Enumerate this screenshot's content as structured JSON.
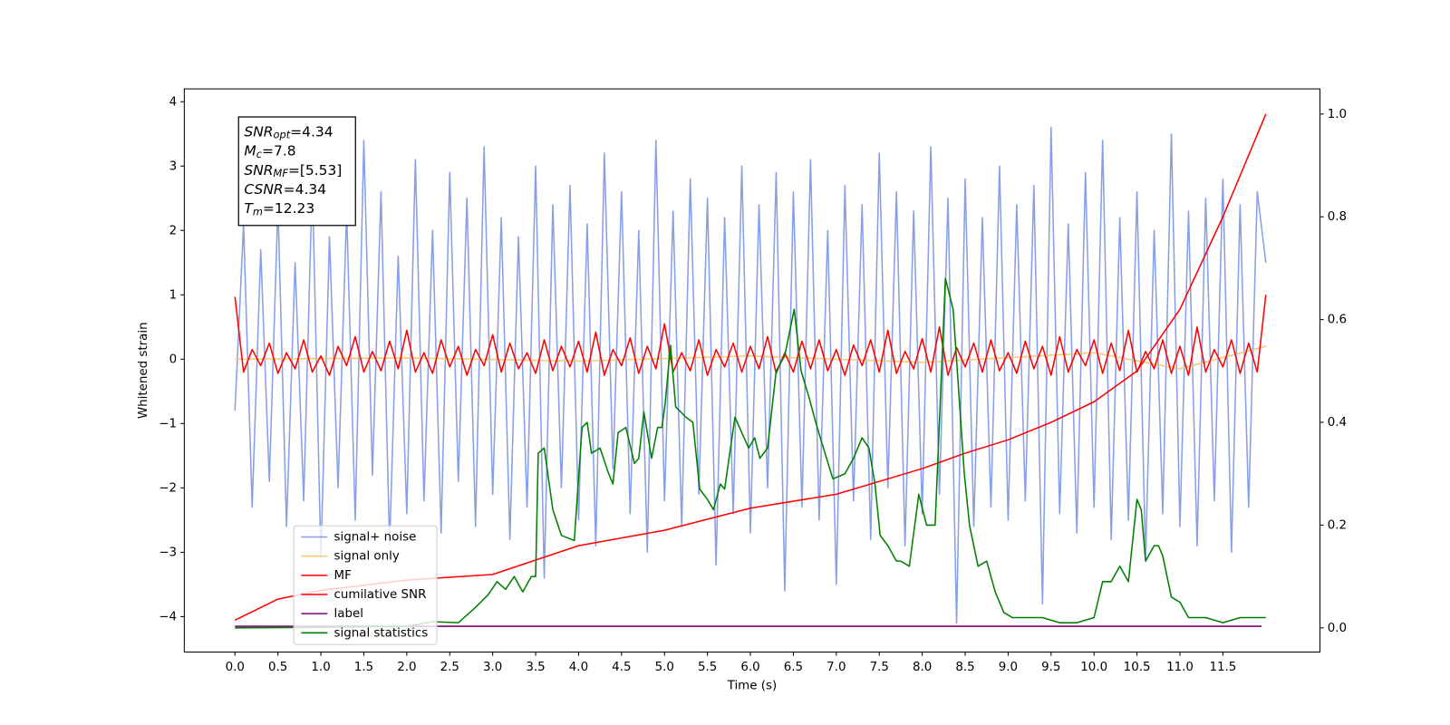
{
  "chart_data": {
    "type": "line",
    "xlabel": "Time (s)",
    "ylabel": "Whitened strain",
    "xlim": [
      -0.59,
      12.63
    ],
    "ylim": [
      -4.55,
      4.2
    ],
    "y2lim": [
      -0.047,
      1.049
    ],
    "xticks": [
      {
        "value": 0,
        "label": "0.0"
      },
      {
        "value": 0.5,
        "label": "0.5"
      },
      {
        "value": 1,
        "label": "1.0"
      },
      {
        "value": 1.5,
        "label": "1.5"
      },
      {
        "value": 2,
        "label": "2.0"
      },
      {
        "value": 2.5,
        "label": "2.5"
      },
      {
        "value": 3,
        "label": "3.0"
      },
      {
        "value": 3.5,
        "label": "3.5"
      },
      {
        "value": 4,
        "label": "4.0"
      },
      {
        "value": 4.5,
        "label": "4.5"
      },
      {
        "value": 5,
        "label": "5.0"
      },
      {
        "value": 5.5,
        "label": "5.5"
      },
      {
        "value": 6,
        "label": "6.0"
      },
      {
        "value": 6.5,
        "label": "6.5"
      },
      {
        "value": 7,
        "label": "7.0"
      },
      {
        "value": 7.5,
        "label": "7.5"
      },
      {
        "value": 8,
        "label": "8.0"
      },
      {
        "value": 8.5,
        "label": "8.5"
      },
      {
        "value": 9,
        "label": "9.0"
      },
      {
        "value": 9.5,
        "label": "9.5"
      },
      {
        "value": 10,
        "label": "10.0"
      },
      {
        "value": 10.5,
        "label": "10.5"
      },
      {
        "value": 11,
        "label": "11.0"
      },
      {
        "value": 11.5,
        "label": "11.5"
      }
    ],
    "yticks": [
      {
        "value": -4,
        "label": "−4"
      },
      {
        "value": -3,
        "label": "−3"
      },
      {
        "value": -2,
        "label": "−2"
      },
      {
        "value": -1,
        "label": "−1"
      },
      0,
      1,
      2,
      3,
      4
    ],
    "y2ticks": [
      {
        "value": 0,
        "label": "0.0"
      },
      {
        "value": 0.2,
        "label": "0.2"
      },
      {
        "value": 0.4,
        "label": "0.4"
      },
      {
        "value": 0.6,
        "label": "0.6"
      },
      {
        "value": 0.8,
        "label": "0.8"
      },
      {
        "value": 1,
        "label": "1.0"
      }
    ],
    "legend": "lower left",
    "annotations": [
      {
        "main": "SNR",
        "sub": "opt",
        "rest": "=4.34"
      },
      {
        "main": "M",
        "sub": "c",
        "rest": "=7.8"
      },
      {
        "main": "SNR",
        "sub": "MF",
        "rest": "=[5.53]"
      },
      {
        "main": "CSNR",
        "rest": "=4.34"
      },
      {
        "main": "T",
        "sub": "m",
        "rest": "=12.23"
      }
    ],
    "x": [
      0,
      0.1,
      0.2,
      0.3,
      0.4,
      0.5,
      0.6,
      0.7,
      0.8,
      0.9,
      1,
      1.1,
      1.2,
      1.3,
      1.4,
      1.5,
      1.6,
      1.7,
      1.8,
      1.9,
      2,
      2.1,
      2.2,
      2.3,
      2.4,
      2.5,
      2.6,
      2.7,
      2.8,
      2.9,
      3,
      3.1,
      3.2,
      3.3,
      3.4,
      3.5,
      3.6,
      3.7,
      3.8,
      3.9,
      4,
      4.1,
      4.2,
      4.3,
      4.4,
      4.5,
      4.6,
      4.7,
      4.8,
      4.9,
      5,
      5.1,
      5.2,
      5.3,
      5.4,
      5.5,
      5.6,
      5.7,
      5.8,
      5.9,
      6,
      6.1,
      6.2,
      6.3,
      6.4,
      6.5,
      6.6,
      6.7,
      6.8,
      6.9,
      7,
      7.1,
      7.2,
      7.3,
      7.4,
      7.5,
      7.6,
      7.7,
      7.8,
      7.9,
      8,
      8.1,
      8.2,
      8.3,
      8.4,
      8.5,
      8.6,
      8.7,
      8.8,
      8.9,
      9,
      9.1,
      9.2,
      9.3,
      9.4,
      9.5,
      9.6,
      9.7,
      9.8,
      9.9,
      10,
      10.1,
      10.2,
      10.3,
      10.4,
      10.5,
      10.6,
      10.7,
      10.8,
      10.9,
      11,
      11.1,
      11.2,
      11.3,
      11.4,
      11.5,
      11.6,
      11.7,
      11.8,
      11.9,
      12
    ],
    "series": [
      {
        "name": "signal+ noise",
        "color": "#7b93e6",
        "values": [
          -0.8,
          2.1,
          -2.3,
          1.7,
          -1.9,
          2.4,
          -2.6,
          1.5,
          -2.2,
          2.8,
          -3.1,
          1.9,
          -2.0,
          2.3,
          -2.5,
          3.4,
          -1.8,
          2.6,
          -2.9,
          1.6,
          -2.4,
          3.1,
          -2.2,
          2.0,
          -2.7,
          2.9,
          -1.9,
          2.5,
          -2.6,
          3.3,
          -2.1,
          2.2,
          -2.8,
          1.9,
          -2.3,
          3.0,
          -3.4,
          2.4,
          -2.0,
          2.7,
          -2.5,
          2.1,
          -2.9,
          3.2,
          -1.7,
          2.6,
          -2.4,
          2.0,
          -3.0,
          3.4,
          -2.2,
          2.3,
          -2.6,
          2.8,
          -2.1,
          2.5,
          -3.2,
          2.2,
          -2.4,
          3.0,
          -2.7,
          2.4,
          -2.0,
          2.9,
          -3.6,
          2.6,
          -2.3,
          3.1,
          -2.5,
          2.0,
          -3.5,
          2.7,
          -2.2,
          2.4,
          -2.8,
          3.2,
          -2.0,
          2.6,
          -2.9,
          2.3,
          -2.4,
          3.3,
          -2.1,
          2.5,
          -4.1,
          2.8,
          -2.6,
          2.2,
          -2.3,
          3.0,
          -2.5,
          2.4,
          -2.2,
          2.7,
          -3.8,
          3.6,
          -2.4,
          2.1,
          -2.7,
          2.9,
          -2.3,
          3.4,
          -2.8,
          2.2,
          -2.5,
          2.6,
          -3.1,
          2.0,
          -2.4,
          3.5,
          -2.6,
          2.3,
          -2.9,
          2.5,
          -2.2,
          2.8,
          -3.0,
          2.4,
          -2.3,
          2.6,
          1.5
        ]
      },
      {
        "name": "signal only",
        "color": "#f5c36b",
        "x": [
          0,
          2,
          4,
          6,
          8,
          10,
          11,
          12
        ],
        "values": [
          0,
          0.02,
          -0.03,
          0.05,
          -0.05,
          0.1,
          -0.15,
          0.2
        ]
      },
      {
        "name": "MF",
        "color": "#ff0000",
        "values": [
          0.97,
          -0.2,
          0.15,
          -0.1,
          0.25,
          -0.22,
          0.1,
          -0.15,
          0.3,
          -0.2,
          0.05,
          -0.25,
          0.2,
          -0.1,
          0.35,
          -0.2,
          0.12,
          -0.18,
          0.28,
          -0.15,
          0.45,
          -0.2,
          0.1,
          -0.22,
          0.3,
          -0.12,
          0.2,
          -0.25,
          0.15,
          -0.1,
          0.38,
          -0.2,
          0.25,
          -0.15,
          0.1,
          -0.22,
          0.3,
          -0.18,
          0.2,
          -0.12,
          0.28,
          -0.2,
          0.42,
          -0.25,
          0.15,
          -0.1,
          0.33,
          -0.22,
          0.2,
          -0.15,
          0.55,
          -0.2,
          0.1,
          -0.18,
          0.3,
          -0.25,
          0.15,
          -0.12,
          0.25,
          -0.2,
          0.2,
          -0.15,
          0.35,
          -0.22,
          0.1,
          -0.2,
          0.28,
          -0.15,
          0.3,
          -0.18,
          0.15,
          -0.25,
          0.22,
          -0.1,
          0.3,
          -0.2,
          0.45,
          -0.22,
          0.12,
          -0.15,
          0.32,
          -0.2,
          0.5,
          -0.25,
          0.18,
          -0.12,
          0.25,
          -0.2,
          0.3,
          -0.18,
          0.1,
          -0.22,
          0.28,
          -0.15,
          0.2,
          -0.25,
          0.35,
          -0.2,
          0.15,
          -0.1,
          0.3,
          -0.22,
          0.25,
          -0.18,
          0.45,
          -0.2,
          0.12,
          -0.15,
          0.3,
          -0.22,
          0.2,
          -0.25,
          0.5,
          -0.2,
          0.15,
          -0.12,
          0.3,
          -0.22,
          0.25,
          -0.2,
          1.0
        ]
      },
      {
        "name": "cumilative SNR",
        "color": "#ff0000",
        "axis": "y2",
        "x": [
          0,
          0.5,
          1,
          2,
          3,
          4,
          5,
          6,
          7,
          8,
          8.5,
          9,
          9.5,
          10,
          10.5,
          11,
          11.5,
          12
        ],
        "values": [
          0.015,
          0.056,
          0.073,
          0.093,
          0.104,
          0.16,
          0.19,
          0.233,
          0.26,
          0.31,
          0.34,
          0.366,
          0.4,
          0.44,
          0.5,
          0.62,
          0.8,
          1.0
        ]
      },
      {
        "name": "label",
        "color": "#800080",
        "x": [
          0,
          11.95
        ],
        "values": [
          -4.15,
          -4.15
        ]
      },
      {
        "name": "signal statistics",
        "color": "#008000",
        "axis": "y2",
        "x": [
          0,
          1,
          2,
          2.3,
          2.6,
          2.8,
          2.95,
          3.05,
          3.15,
          3.25,
          3.35,
          3.45,
          3.5,
          3.53,
          3.6,
          3.7,
          3.8,
          3.95,
          4.04,
          4.1,
          4.15,
          4.25,
          4.35,
          4.4,
          4.46,
          4.55,
          4.65,
          4.7,
          4.76,
          4.85,
          4.92,
          4.97,
          5.01,
          5.07,
          5.13,
          5.25,
          5.33,
          5.41,
          5.5,
          5.57,
          5.65,
          5.7,
          5.82,
          5.9,
          5.98,
          6.05,
          6.11,
          6.2,
          6.3,
          6.4,
          6.51,
          6.59,
          6.68,
          6.76,
          6.85,
          6.96,
          7.1,
          7.2,
          7.3,
          7.38,
          7.45,
          7.51,
          7.6,
          7.7,
          7.75,
          7.85,
          7.96,
          8.05,
          8.15,
          8.27,
          8.36,
          8.49,
          8.55,
          8.65,
          8.75,
          8.85,
          8.95,
          9.05,
          9.2,
          9.4,
          9.6,
          9.8,
          10,
          10.1,
          10.2,
          10.3,
          10.4,
          10.5,
          10.55,
          10.6,
          10.7,
          10.75,
          10.8,
          10.9,
          11,
          11.1,
          11.3,
          11.5,
          11.7,
          11.9,
          12
        ],
        "values": [
          0,
          0.001,
          0.003,
          0.012,
          0.01,
          0.04,
          0.065,
          0.09,
          0.075,
          0.1,
          0.07,
          0.1,
          0.1,
          0.34,
          0.35,
          0.23,
          0.18,
          0.17,
          0.39,
          0.4,
          0.34,
          0.35,
          0.3,
          0.28,
          0.38,
          0.39,
          0.32,
          0.33,
          0.42,
          0.33,
          0.39,
          0.39,
          0.44,
          0.55,
          0.43,
          0.41,
          0.4,
          0.27,
          0.25,
          0.23,
          0.28,
          0.27,
          0.41,
          0.38,
          0.35,
          0.37,
          0.33,
          0.35,
          0.5,
          0.53,
          0.62,
          0.5,
          0.45,
          0.4,
          0.35,
          0.29,
          0.3,
          0.33,
          0.37,
          0.35,
          0.28,
          0.18,
          0.16,
          0.13,
          0.13,
          0.12,
          0.26,
          0.2,
          0.2,
          0.68,
          0.62,
          0.3,
          0.2,
          0.12,
          0.13,
          0.07,
          0.03,
          0.02,
          0.02,
          0.02,
          0.01,
          0.01,
          0.02,
          0.09,
          0.09,
          0.12,
          0.09,
          0.25,
          0.23,
          0.13,
          0.16,
          0.16,
          0.14,
          0.06,
          0.05,
          0.02,
          0.02,
          0.01,
          0.02,
          0.02,
          0.02
        ]
      }
    ]
  }
}
